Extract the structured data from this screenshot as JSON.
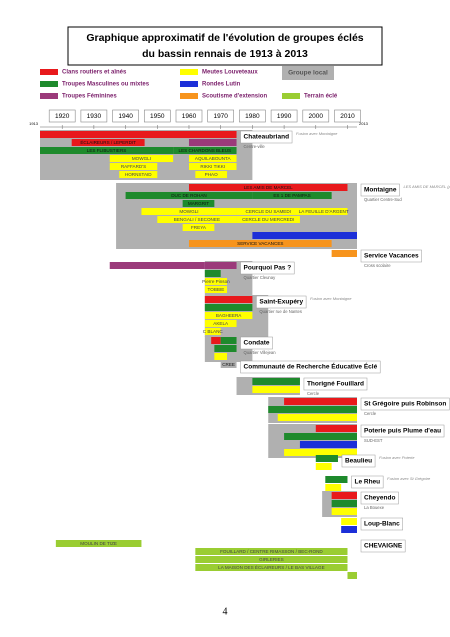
{
  "header": {
    "title_lines": [
      "Graphique approximatif de l'évolution de groupes éclés",
      "du bassin rennais de 1913 à 2013"
    ]
  },
  "legend": [
    {
      "label": "Clans routiers et aînés",
      "color": "#e8191c"
    },
    {
      "label": "Troupes Masculines ou mixtes",
      "color": "#1e8a2c"
    },
    {
      "label": "Troupes Féminines",
      "color": "#9b3a7a"
    },
    {
      "label": "Meutes Louveteaux",
      "color": "#ffff00"
    },
    {
      "label": "Rondes Lutin",
      "color": "#1c2fd8"
    },
    {
      "label": "Scoutisme d'extension",
      "color": "#f7941d"
    },
    {
      "label": "Groupe local",
      "color": "#b0b0b0"
    },
    {
      "label": "Terrain éclé",
      "color": "#9acd32"
    }
  ],
  "timeline": {
    "xlim": [
      1913,
      2013
    ],
    "xticks": [
      1920,
      1930,
      1940,
      1950,
      1960,
      1970,
      1980,
      1990,
      2000,
      2010
    ]
  },
  "groups": [
    {
      "title": "Chateaubriand",
      "subtitle": "Centre-ville",
      "note": "Fusion avec Montaigne",
      "span": [
        1913,
        1980
      ],
      "rows": [
        [
          {
            "start": 1913,
            "end": 1975,
            "color": "#e8191c"
          }
        ],
        [
          {
            "start": 1923,
            "end": 1946,
            "color": "#e8191c",
            "label": "ÉCLAIREURS / LEPERDIT"
          },
          {
            "start": 1960,
            "end": 1975,
            "color": "#9b3a7a"
          }
        ],
        [
          {
            "start": 1913,
            "end": 1955,
            "color": "#1e8a2c",
            "label": "LES FLIBUSTIERS"
          },
          {
            "start": 1955,
            "end": 1975,
            "color": "#1e8a2c",
            "label": "LES CHARDONS BLEUS"
          }
        ],
        [
          {
            "start": 1935,
            "end": 1955,
            "color": "#ffff00",
            "label": "MOWGLI"
          },
          {
            "start": 1960,
            "end": 1975,
            "color": "#ffff00",
            "label": "AQUILABOUNTA"
          }
        ],
        [
          {
            "start": 1935,
            "end": 1950,
            "color": "#ffff00",
            "label": "RAFFARD'S"
          },
          {
            "start": 1960,
            "end": 1975,
            "color": "#ffff00",
            "label": "RIKKI TIKKI"
          }
        ],
        [
          {
            "start": 1938,
            "end": 1950,
            "color": "#ffff00",
            "label": "HORNSTAID"
          },
          {
            "start": 1962,
            "end": 1972,
            "color": "#ffff00",
            "label": "PHAO"
          }
        ]
      ]
    },
    {
      "title": "Montaigne",
      "subtitle": "Quartier Centre-Sud",
      "note": "LES AMIS DE MARCEL (public handicapé)",
      "span": [
        1937,
        2013
      ],
      "rows": [
        [
          {
            "start": 1960,
            "end": 2010,
            "color": "#e8191c",
            "label": "LES AMIS DE MARCEL"
          }
        ],
        [
          {
            "start": 1940,
            "end": 1980,
            "color": "#1e8a2c",
            "label": "DUC DE ROHAN"
          },
          {
            "start": 1980,
            "end": 2005,
            "color": "#1e8a2c",
            "label": "ES 1 DE PAMPAS"
          }
        ],
        [
          {
            "start": 1958,
            "end": 1968,
            "color": "#1e8a2c",
            "label": "MARGRIT"
          }
        ],
        [
          {
            "start": 1945,
            "end": 1975,
            "color": "#ffff00",
            "label": "MOWGLI"
          },
          {
            "start": 1975,
            "end": 1995,
            "color": "#ffff00",
            "label": "CERCLE DU SAMEDI"
          },
          {
            "start": 1995,
            "end": 2010,
            "color": "#ffff00",
            "label": "LA FEUILLE D'ARGENT"
          }
        ],
        [
          {
            "start": 1950,
            "end": 1975,
            "color": "#ffff00",
            "label": "BENGALI / SECONEE"
          },
          {
            "start": 1975,
            "end": 1995,
            "color": "#ffff00",
            "label": "CERCLE DU MERCREDI"
          }
        ],
        [
          {
            "start": 1958,
            "end": 1968,
            "color": "#ffff00",
            "label": "FREYA"
          }
        ],
        [
          {
            "start": 1980,
            "end": 2013,
            "color": "#1c2fd8"
          }
        ],
        [
          {
            "start": 1960,
            "end": 2005,
            "color": "#f7941d",
            "label": "SERVICE VACANCES"
          }
        ]
      ]
    },
    {
      "title": "Service Vacances",
      "subtitle": "Cross scolaire",
      "rows": [
        [
          {
            "start": 2005,
            "end": 2013,
            "color": "#f7941d"
          }
        ]
      ]
    },
    {
      "title": "Pourquoi Pas ?",
      "subtitle": "Quartier Cleunay",
      "span": [
        1965,
        1980
      ],
      "rows": [
        [
          {
            "start": 1935,
            "end": 1965,
            "color": "#9b3a7a"
          },
          {
            "start": 1965,
            "end": 1975,
            "color": "#9b3a7a"
          }
        ],
        [
          {
            "start": 1965,
            "end": 1970,
            "color": "#1e8a2c"
          }
        ],
        [
          {
            "start": 1965,
            "end": 1972,
            "color": "#ffff00",
            "label": "Pierre Pinson"
          }
        ],
        [
          {
            "start": 1965,
            "end": 1972,
            "color": "#ffff00",
            "label": "TOBBIE"
          }
        ]
      ]
    },
    {
      "title": "Saint-Exupéry",
      "subtitle": "Quartier rue de Nantes",
      "note": "Fusion avec Montaigne",
      "span": [
        1965,
        1985
      ],
      "rows": [
        [
          {
            "start": 1965,
            "end": 1980,
            "color": "#e8191c"
          }
        ],
        [
          {
            "start": 1965,
            "end": 1980,
            "color": "#1e8a2c"
          }
        ],
        [
          {
            "start": 1965,
            "end": 1980,
            "color": "#ffff00",
            "label": "BAGHEERA"
          }
        ],
        [
          {
            "start": 1965,
            "end": 1975,
            "color": "#ffff00",
            "label": "AKELA"
          }
        ],
        [
          {
            "start": 1965,
            "end": 1970,
            "color": "#ffff00",
            "label": "C BLANC"
          }
        ]
      ]
    },
    {
      "title": "Condate",
      "subtitle": "Quartier Villejean",
      "span": [
        1965,
        1980
      ],
      "rows": [
        [
          {
            "start": 1967,
            "end": 1970,
            "color": "#e8191c"
          },
          {
            "start": 1970,
            "end": 1975,
            "color": "#1e8a2c"
          }
        ],
        [
          {
            "start": 1968,
            "end": 1975,
            "color": "#1e8a2c"
          }
        ],
        [
          {
            "start": 1968,
            "end": 1972,
            "color": "#ffff00"
          }
        ]
      ]
    },
    {
      "title": "Communauté de Recherche Éducative Éclé",
      "rows": [
        [
          {
            "start": 1970,
            "end": 1975,
            "color": "#b0b0b0",
            "label": "CREE"
          }
        ]
      ]
    },
    {
      "title": "Thorigné Fouillard",
      "subtitle": "Cercle",
      "span": [
        1975,
        1995
      ],
      "rows": [
        [
          {
            "start": 1980,
            "end": 1995,
            "color": "#1e8a2c"
          }
        ],
        [
          {
            "start": 1980,
            "end": 1995,
            "color": "#ffff00"
          }
        ]
      ]
    },
    {
      "title": "St Grégoire puis Robinson",
      "subtitle": "Cercle",
      "span": [
        1985,
        2013
      ],
      "rows": [
        [
          {
            "start": 1990,
            "end": 2013,
            "color": "#e8191c"
          }
        ],
        [
          {
            "start": 1985,
            "end": 2013,
            "color": "#1e8a2c"
          }
        ],
        [
          {
            "start": 1988,
            "end": 2013,
            "color": "#ffff00"
          }
        ]
      ]
    },
    {
      "title": "Poterie puis Plume d'eau",
      "subtitle": "SUD-EST",
      "span": [
        1985,
        2013
      ],
      "rows": [
        [
          {
            "start": 2000,
            "end": 2013,
            "color": "#e8191c"
          }
        ],
        [
          {
            "start": 1990,
            "end": 2013,
            "color": "#1e8a2c"
          }
        ],
        [
          {
            "start": 1995,
            "end": 2013,
            "color": "#1c2fd8"
          }
        ],
        [
          {
            "start": 1990,
            "end": 2013,
            "color": "#ffff00"
          }
        ]
      ]
    },
    {
      "title": "Beaulieu",
      "note": "Fusion avec Poterie",
      "rows": [
        [
          {
            "start": 2000,
            "end": 2007,
            "color": "#1e8a2c"
          }
        ],
        [
          {
            "start": 2000,
            "end": 2005,
            "color": "#ffff00"
          }
        ]
      ]
    },
    {
      "title": "Le Rheu",
      "note": "Fusion avec St Grégoire",
      "rows": [
        [
          {
            "start": 2003,
            "end": 2010,
            "color": "#1e8a2c"
          }
        ],
        [
          {
            "start": 2003,
            "end": 2008,
            "color": "#ffff00"
          }
        ]
      ]
    },
    {
      "title": "Cheyendo",
      "subtitle": "La Bouexe",
      "span": [
        2002,
        2013
      ],
      "rows": [
        [
          {
            "start": 2005,
            "end": 2013,
            "color": "#e8191c"
          }
        ],
        [
          {
            "start": 2005,
            "end": 2013,
            "color": "#1e8a2c"
          }
        ],
        [
          {
            "start": 2005,
            "end": 2013,
            "color": "#ffff00"
          }
        ]
      ]
    },
    {
      "title": "Loup-Blanc",
      "rows": [
        [
          {
            "start": 2008,
            "end": 2013,
            "color": "#ffff00"
          }
        ],
        [
          {
            "start": 2008,
            "end": 2013,
            "color": "#1c2fd8"
          }
        ]
      ]
    },
    {
      "title": "CHEVAIGNE",
      "rows": [
        [
          {
            "start": 1918,
            "end": 1945,
            "color": "#9acd32",
            "label": "MOULIN DE TIZE"
          }
        ],
        [
          {
            "start": 1962,
            "end": 2010,
            "color": "#9acd32",
            "label": "FOUILLARD / CENTRE RIMASSON / BEC-ROND"
          }
        ],
        [
          {
            "start": 1962,
            "end": 2010,
            "color": "#9acd32",
            "label": "GIRLERIES"
          }
        ],
        [
          {
            "start": 1962,
            "end": 2010,
            "color": "#9acd32",
            "label": "LA MAISON DES ÉCLAIREURS / LE BAS VILLAGE"
          }
        ],
        [
          {
            "start": 2010,
            "end": 2013,
            "color": "#9acd32"
          }
        ]
      ]
    }
  ],
  "footer": {
    "page": "4"
  }
}
